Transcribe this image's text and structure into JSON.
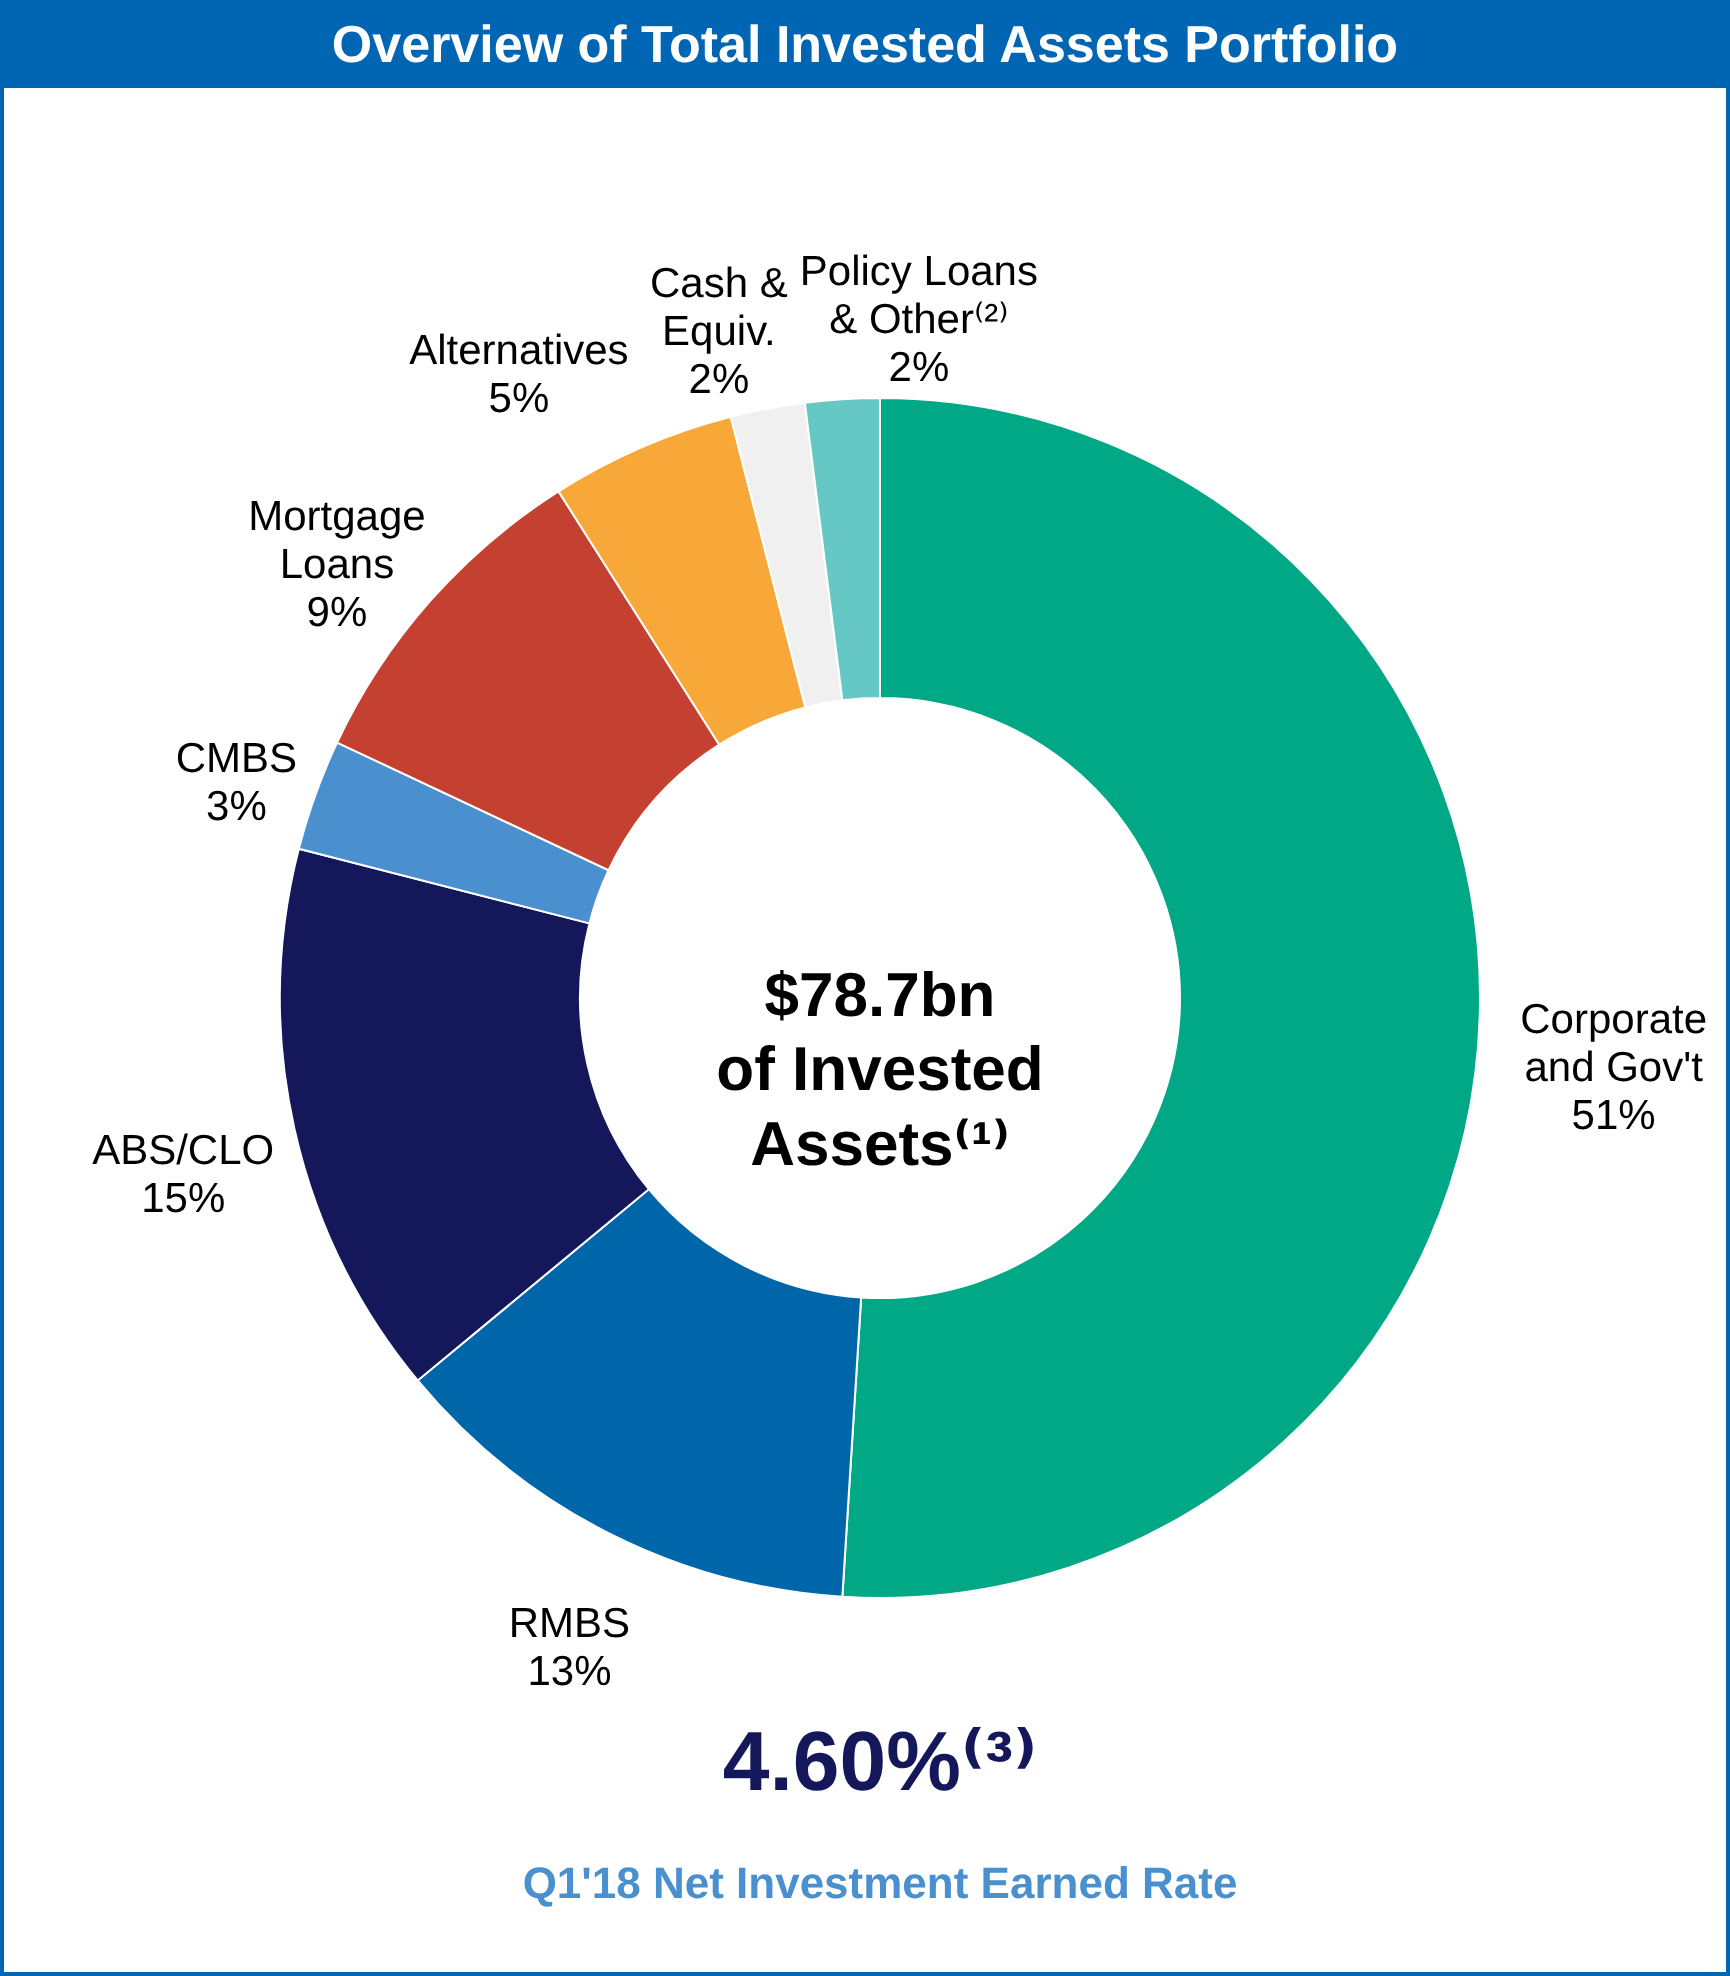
{
  "chart_data": {
    "type": "donut",
    "title": "Overview of Total Invested Assets Portfolio",
    "categories": [
      "Corporate\nand Gov't",
      "RMBS",
      "ABS/CLO",
      "CMBS",
      "Mortgage\nLoans",
      "Alternatives",
      "Cash &\nEquiv.",
      "Policy Loans\n& Other⁽²⁾"
    ],
    "values": [
      51,
      13,
      15,
      3,
      9,
      5,
      2,
      2
    ],
    "colors": [
      "#00a886",
      "#0066aa",
      "#14185a",
      "#4a90cf",
      "#c44030",
      "#f8a838",
      "#eff0ef",
      "#66c8c4"
    ],
    "value_labels": [
      "51%",
      "13%",
      "15%",
      "3%",
      "9%",
      "5%",
      "2%",
      "2%"
    ],
    "annotations": [
      "$78.7bn\nof Invested\nAssets⁽¹⁾",
      "4.60%⁽³⁾",
      "Q1'18 Net Investment Earned Rate"
    ]
  }
}
